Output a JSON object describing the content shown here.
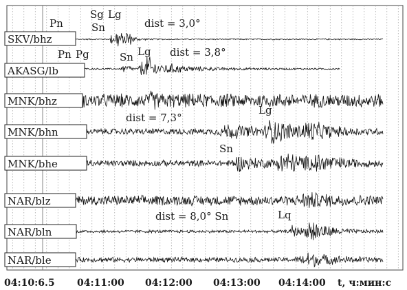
{
  "chart_data": {
    "type": "line",
    "title": "",
    "xlabel": "t, ч:мин:с",
    "ylabel": "",
    "x_ticks": [
      "04:10:6.5",
      "04:11:00",
      "04:12:00",
      "04:13:00",
      "04:14:00"
    ],
    "x_tick_seconds": [
      0,
      53.5,
      113.5,
      173.5,
      233.5
    ],
    "xlim_seconds": [
      -30,
      300
    ],
    "x_origin": "04:10:06.5",
    "grid": true,
    "traces": [
      {
        "channel": "SKV/bhz",
        "start_s": 18,
        "end_s": 300,
        "noise": 0.05,
        "events": [
          {
            "t_s": 60,
            "amp": 0.5,
            "dur_s": 3
          },
          {
            "t_s": 65,
            "amp": 1.0,
            "dur_s": 7
          },
          {
            "t_s": 74,
            "amp": 0.7,
            "dur_s": 5
          }
        ]
      },
      {
        "channel": "AKASG/lb",
        "start_s": 15,
        "end_s": 262,
        "noise": 0.06,
        "events": [
          {
            "t_s": 70,
            "amp": 0.45,
            "dur_s": 4
          },
          {
            "t_s": 75,
            "amp": 0.35,
            "dur_s": 3
          },
          {
            "t_s": 86,
            "amp": 0.8,
            "dur_s": 6
          },
          {
            "t_s": 92,
            "amp": 1.0,
            "dur_s": 11
          },
          {
            "t_s": 110,
            "amp": 0.3,
            "dur_s": 40
          }
        ]
      },
      {
        "channel": "MNK/bhz",
        "start_s": 15,
        "end_s": 300,
        "noise": 0.55,
        "events": [
          {
            "t_s": 95,
            "amp": 0.3,
            "dur_s": 10
          }
        ]
      },
      {
        "channel": "MNK/bhn",
        "start_s": 15,
        "end_s": 300,
        "noise": 0.25,
        "events": [
          {
            "t_s": 160,
            "amp": 0.5,
            "dur_s": 30
          },
          {
            "t_s": 200,
            "amp": 0.8,
            "dur_s": 30
          },
          {
            "t_s": 232,
            "amp": 0.6,
            "dur_s": 20
          }
        ]
      },
      {
        "channel": "MNK/bhe",
        "start_s": 15,
        "end_s": 300,
        "noise": 0.25,
        "events": [
          {
            "t_s": 170,
            "amp": 0.5,
            "dur_s": 25
          },
          {
            "t_s": 210,
            "amp": 0.8,
            "dur_s": 30
          },
          {
            "t_s": 240,
            "amp": 0.5,
            "dur_s": 20
          }
        ]
      },
      {
        "channel": "NAR/blz",
        "start_s": 15,
        "end_s": 300,
        "noise": 0.4,
        "events": [
          {
            "t_s": 230,
            "amp": 0.4,
            "dur_s": 25
          }
        ]
      },
      {
        "channel": "NAR/bln",
        "start_s": 15,
        "end_s": 300,
        "noise": 0.12,
        "events": [
          {
            "t_s": 220,
            "amp": 0.5,
            "dur_s": 10
          },
          {
            "t_s": 235,
            "amp": 1.0,
            "dur_s": 18
          }
        ]
      },
      {
        "channel": "NAR/ble",
        "start_s": 15,
        "end_s": 300,
        "noise": 0.2,
        "events": [
          {
            "t_s": 230,
            "amp": 0.6,
            "dur_s": 25
          }
        ]
      }
    ],
    "annotations": [
      {
        "text": "Pn",
        "trace": "SKV/bhz"
      },
      {
        "text": "Sg",
        "trace": "SKV/bhz"
      },
      {
        "text": "Lg",
        "trace": "SKV/bhz"
      },
      {
        "text": "Sn",
        "trace": "SKV/bhz"
      },
      {
        "text": "dist = 3,0°",
        "trace": "SKV/bhz"
      },
      {
        "text": "Pn",
        "trace": "AKASG/lb"
      },
      {
        "text": "Pg",
        "trace": "AKASG/lb"
      },
      {
        "text": "Sn",
        "trace": "AKASG/lb"
      },
      {
        "text": "Lg",
        "trace": "AKASG/lb"
      },
      {
        "text": "dist = 3,8°",
        "trace": "AKASG/lb"
      },
      {
        "text": "dist = 7,3°",
        "trace": "MNK/bhn"
      },
      {
        "text": "Lg",
        "trace": "MNK/bhn"
      },
      {
        "text": "Sn",
        "trace": "MNK/bhe"
      },
      {
        "text": "dist = 8,0° Sn",
        "trace": "NAR/bln"
      },
      {
        "text": "Lq",
        "trace": "NAR/bln"
      }
    ]
  }
}
